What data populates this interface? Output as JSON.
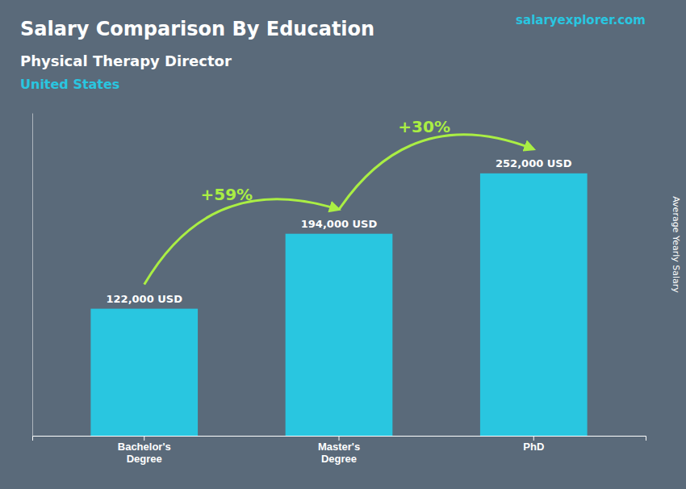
{
  "chart_data": {
    "type": "bar",
    "title": "Salary Comparison By Education",
    "subtitle": [
      "Physical Therapy Director",
      "United States"
    ],
    "categories": [
      "Bachelor's\nDegree",
      "Master's\nDegree",
      "PhD"
    ],
    "values": [
      122000,
      194000,
      252000
    ],
    "value_labels": [
      "122,000 USD",
      "194,000 USD",
      "252,000 USD"
    ],
    "data_labels": true,
    "color": "#29c6e0",
    "ylim": [
      0,
      310000
    ],
    "tick_labels": "x",
    "ylabel": "Average Yearly Salary",
    "annotations": [
      {
        "text": "+59%",
        "color": "#aaee44"
      },
      {
        "text": "+30%",
        "color": "#aaee44"
      }
    ],
    "watermark": "salaryexplorer.com"
  }
}
